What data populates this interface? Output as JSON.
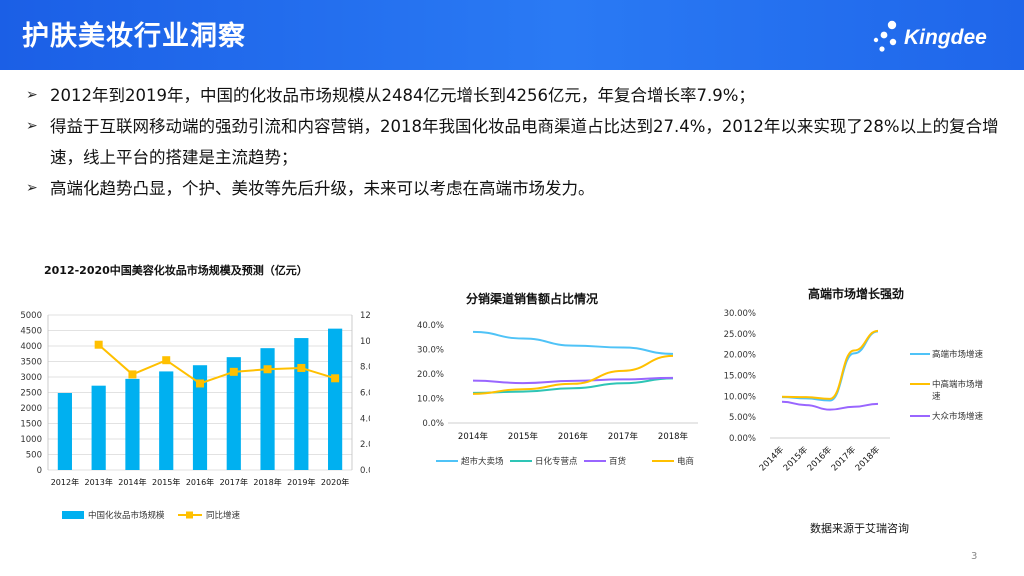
{
  "slide": {
    "title": "护肤美妆行业洞察",
    "logo_text": "Kingdee",
    "bullets": [
      "2012年到2019年，中国的化妆品市场规模从2484亿元增长到4256亿元，年复合增长率7.9%；",
      "得益于互联网移动端的强劲引流和内容营销，2018年我国化妆品电商渠道占比达到27.4%，2012年以来实现了28%以上的复合增速，线上平台的搭建是主流趋势；",
      "高端化趋势凸显，个护、美妆等先后升级，未来可以考虑在高端市场发力。"
    ],
    "bullet_marker": "➢",
    "source": "数据来源于艾瑞咨询",
    "page_number": "3",
    "colors": {
      "header": "#1b5fe6",
      "cyan": "#00b0f0",
      "yellow": "#ffc000",
      "teal": "#2ec5b6",
      "purple": "#9966ff",
      "lightblue": "#4fc3f7"
    }
  },
  "chart_data": [
    {
      "type": "bar",
      "title": "2012-2020中国美容化妆品市场规模及预测（亿元）",
      "categories": [
        "2012年",
        "2013年",
        "2014年",
        "2015年",
        "2016年",
        "2017年",
        "2018年",
        "2019年",
        "2020年"
      ],
      "series": [
        {
          "name": "中国化妆品市场规模",
          "type": "bar",
          "axis": "left",
          "color": "#00b0f0",
          "values": [
            2484,
            2720,
            2940,
            3180,
            3380,
            3640,
            3930,
            4256,
            4560
          ]
        },
        {
          "name": "同比增速",
          "type": "line",
          "axis": "right",
          "color": "#ffc000",
          "values": [
            null,
            9.7,
            7.4,
            8.5,
            6.7,
            7.6,
            7.8,
            7.9,
            7.1
          ]
        }
      ],
      "ylim_left": [
        0,
        5000
      ],
      "yticks_left": [
        "0",
        "500",
        "1000",
        "1500",
        "2000",
        "2500",
        "3000",
        "3500",
        "4000",
        "4500",
        "5000"
      ],
      "ylim_right": [
        0,
        12
      ],
      "yticks_right": [
        "0.00%",
        "2.00%",
        "4.00%",
        "6.00%",
        "8.00%",
        "10.00%",
        "12.00%"
      ],
      "grid": true,
      "legend": "bottom"
    },
    {
      "type": "line",
      "title": "分销渠道销售额占比情况",
      "categories": [
        "2014年",
        "2015年",
        "2016年",
        "2017年",
        "2018年"
      ],
      "series": [
        {
          "name": "超市大卖场",
          "color": "#4fc3f7",
          "values": [
            37.2,
            34.5,
            31.6,
            30.8,
            28.2
          ]
        },
        {
          "name": "日化专营点",
          "color": "#2ec5b6",
          "values": [
            12.3,
            12.8,
            14.2,
            16.2,
            18.2
          ]
        },
        {
          "name": "百货",
          "color": "#9966ff",
          "values": [
            17.3,
            16.3,
            17.2,
            17.8,
            18.4
          ]
        },
        {
          "name": "电商",
          "color": "#ffc000",
          "values": [
            11.9,
            13.8,
            16.0,
            21.3,
            27.4
          ]
        }
      ],
      "ylim": [
        0,
        40
      ],
      "yticks": [
        "0.0%",
        "10.0%",
        "20.0%",
        "30.0%",
        "40.0%"
      ],
      "grid": false,
      "legend": "bottom"
    },
    {
      "type": "line",
      "title": "高端市场增长强劲",
      "categories": [
        "2014年",
        "2015年",
        "2016年",
        "2017年",
        "2018年"
      ],
      "series": [
        {
          "name": "高端市场增速",
          "color": "#4fc3f7",
          "values": [
            9.8,
            9.5,
            9.0,
            20.3,
            25.6
          ]
        },
        {
          "name": "中高端市场增速",
          "color": "#ffc000",
          "values": [
            9.9,
            9.8,
            9.4,
            21.0,
            25.7
          ]
        },
        {
          "name": "大众市场增速",
          "color": "#9966ff",
          "values": [
            8.7,
            7.9,
            6.8,
            7.5,
            8.2
          ]
        }
      ],
      "ylim": [
        0,
        30
      ],
      "yticks": [
        "0.00%",
        "5.00%",
        "10.00%",
        "15.00%",
        "20.00%",
        "25.00%",
        "30.00%"
      ],
      "grid": false,
      "legend": "right"
    }
  ]
}
